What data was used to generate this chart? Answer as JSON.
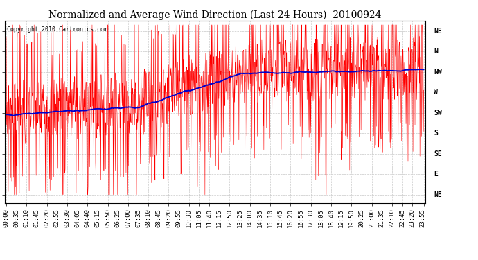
{
  "title": "Normalized and Average Wind Direction (Last 24 Hours)  20100924",
  "copyright": "Copyright 2010 Cartronics.com",
  "background_color": "#ffffff",
  "grid_color": "#c8c8c8",
  "y_labels": [
    "NE",
    "N",
    "NW",
    "W",
    "SW",
    "S",
    "SE",
    "E",
    "NE"
  ],
  "y_values": [
    9,
    8,
    7,
    6,
    5,
    4,
    3,
    2,
    1
  ],
  "y_min": 1,
  "y_max": 9,
  "red_line_color": "#ff0000",
  "blue_line_color": "#0000cc",
  "n_points": 1440,
  "x_tick_every_n": 35,
  "x_tick_labels": [
    "00:00",
    "00:35",
    "01:10",
    "01:45",
    "02:20",
    "02:55",
    "03:30",
    "04:05",
    "04:40",
    "05:15",
    "05:50",
    "06:25",
    "07:00",
    "07:35",
    "08:10",
    "08:45",
    "09:20",
    "09:55",
    "10:30",
    "11:05",
    "11:40",
    "12:15",
    "12:50",
    "13:25",
    "14:00",
    "14:35",
    "15:10",
    "15:45",
    "16:20",
    "16:55",
    "17:30",
    "18:05",
    "18:40",
    "19:15",
    "19:50",
    "20:25",
    "21:00",
    "21:35",
    "22:10",
    "22:45",
    "23:20",
    "23:55"
  ],
  "title_fontsize": 10,
  "label_fontsize": 7,
  "copyright_fontsize": 6
}
